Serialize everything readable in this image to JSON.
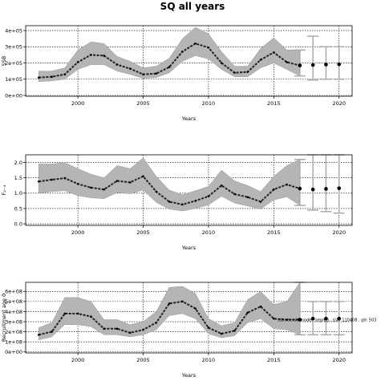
{
  "figure": {
    "title": "SQ all years"
  },
  "chart_data": [
    {
      "type": "line",
      "xlabel": "Years",
      "ylabel": "SSB",
      "xlim": [
        1996,
        2021
      ],
      "ylim": [
        -5000,
        430000
      ],
      "xticks": [
        2000,
        2005,
        2010,
        2015,
        2020
      ],
      "yticks": [
        0,
        100000,
        200000,
        300000,
        400000
      ],
      "ytick_labels": [
        "0e+00",
        "1e+05",
        "2e+05",
        "3e+05",
        "4e+05"
      ],
      "grid": true,
      "x": [
        1997,
        1998,
        1999,
        2000,
        2001,
        2002,
        2003,
        2004,
        2005,
        2006,
        2007,
        2008,
        2009,
        2010,
        2011,
        2012,
        2013,
        2014,
        2015,
        2016,
        2017
      ],
      "median": [
        110000,
        115000,
        130000,
        205000,
        250000,
        245000,
        190000,
        165000,
        130000,
        135000,
        175000,
        270000,
        320000,
        295000,
        200000,
        140000,
        145000,
        220000,
        265000,
        205000,
        185000
      ],
      "lower": [
        85000,
        90000,
        100000,
        160000,
        190000,
        190000,
        150000,
        130000,
        105000,
        110000,
        140000,
        210000,
        245000,
        225000,
        160000,
        115000,
        115000,
        170000,
        200000,
        160000,
        120000
      ],
      "upper": [
        150000,
        150000,
        170000,
        280000,
        330000,
        320000,
        240000,
        210000,
        170000,
        180000,
        230000,
        350000,
        420000,
        380000,
        270000,
        180000,
        180000,
        290000,
        355000,
        280000,
        280000
      ],
      "projection": {
        "x": [
          2017,
          2018,
          2019,
          2020
        ],
        "median": [
          185000,
          188000,
          190000,
          192000
        ],
        "lower": [
          120000,
          95000,
          100000,
          100000
        ],
        "upper": [
          280000,
          365000,
          300000,
          300000
        ]
      }
    },
    {
      "type": "line",
      "xlabel": "Years",
      "ylabel": "F₂₋₄",
      "xlim": [
        1996,
        2021
      ],
      "ylim": [
        -0.05,
        2.25
      ],
      "xticks": [
        2000,
        2005,
        2010,
        2015,
        2020
      ],
      "yticks": [
        0.0,
        0.5,
        1.0,
        1.5,
        2.0
      ],
      "ytick_labels": [
        "0.0",
        "0.5",
        "1.0",
        "1.5",
        "2.0"
      ],
      "grid": true,
      "x": [
        1997,
        1998,
        1999,
        2000,
        2001,
        2002,
        2003,
        2004,
        2005,
        2006,
        2007,
        2008,
        2009,
        2010,
        2011,
        2012,
        2013,
        2014,
        2015,
        2016,
        2017
      ],
      "median": [
        1.38,
        1.44,
        1.49,
        1.3,
        1.18,
        1.12,
        1.4,
        1.35,
        1.55,
        1.05,
        0.72,
        0.63,
        0.75,
        0.9,
        1.25,
        0.97,
        0.87,
        0.72,
        1.12,
        1.28,
        1.15
      ],
      "lower": [
        1.0,
        1.05,
        1.08,
        0.92,
        0.85,
        0.82,
        1.02,
        0.98,
        1.1,
        0.7,
        0.48,
        0.42,
        0.5,
        0.62,
        0.9,
        0.68,
        0.58,
        0.48,
        0.78,
        0.88,
        0.6
      ],
      "upper": [
        1.95,
        1.95,
        2.0,
        1.8,
        1.62,
        1.5,
        1.9,
        1.8,
        2.15,
        1.55,
        1.1,
        0.95,
        1.08,
        1.22,
        1.75,
        1.4,
        1.25,
        1.05,
        1.55,
        1.9,
        2.1
      ],
      "projection": {
        "x": [
          2017,
          2018,
          2019,
          2020
        ],
        "median": [
          1.15,
          1.12,
          1.14,
          1.16
        ],
        "lower": [
          0.6,
          0.45,
          0.4,
          0.35
        ],
        "upper": [
          2.1,
          2.25,
          2.25,
          2.25
        ]
      }
    },
    {
      "type": "line",
      "xlabel": "Years",
      "ylabel": "Recruitment age 0",
      "xlim": [
        1996,
        2021
      ],
      "ylim": [
        -10000000,
        690000000
      ],
      "xticks": [
        2000,
        2005,
        2010,
        2015,
        2020
      ],
      "yticks": [
        0,
        100000000,
        200000000,
        300000000,
        400000000,
        500000000,
        600000000
      ],
      "ytick_labels": [
        "0e+00",
        "1e+08",
        "2e+08",
        "3e+08",
        "4e+08",
        "5e+08",
        "6e+08"
      ],
      "grid": true,
      "x": [
        1997,
        1998,
        1999,
        2000,
        2001,
        2002,
        2003,
        2004,
        2005,
        2006,
        2007,
        2008,
        2009,
        2010,
        2011,
        2012,
        2013,
        2014,
        2015,
        2016,
        2017
      ],
      "median": [
        170000000,
        200000000,
        380000000,
        380000000,
        350000000,
        230000000,
        230000000,
        190000000,
        220000000,
        290000000,
        480000000,
        500000000,
        430000000,
        240000000,
        180000000,
        210000000,
        390000000,
        450000000,
        330000000,
        320000000,
        320000000
      ],
      "lower": [
        120000000,
        150000000,
        270000000,
        270000000,
        250000000,
        170000000,
        170000000,
        150000000,
        170000000,
        220000000,
        360000000,
        380000000,
        330000000,
        180000000,
        140000000,
        160000000,
        290000000,
        330000000,
        230000000,
        220000000,
        170000000
      ],
      "upper": [
        240000000,
        290000000,
        540000000,
        540000000,
        500000000,
        320000000,
        320000000,
        270000000,
        300000000,
        400000000,
        640000000,
        650000000,
        580000000,
        330000000,
        260000000,
        290000000,
        520000000,
        600000000,
        470000000,
        500000000,
        690000000
      ],
      "projection": {
        "x": [
          2017,
          2018,
          2019,
          2020
        ],
        "median": [
          320000000,
          330000000,
          330000000,
          330000000
        ],
        "lower": [
          170000000,
          170000000,
          170000000,
          170000000
        ],
        "upper": [
          690000000,
          500000000,
          500000000,
          500000000
        ]
      },
      "annotation": "ssb:recruit model: segreg , ssb: 110408 , gb: 503"
    }
  ]
}
